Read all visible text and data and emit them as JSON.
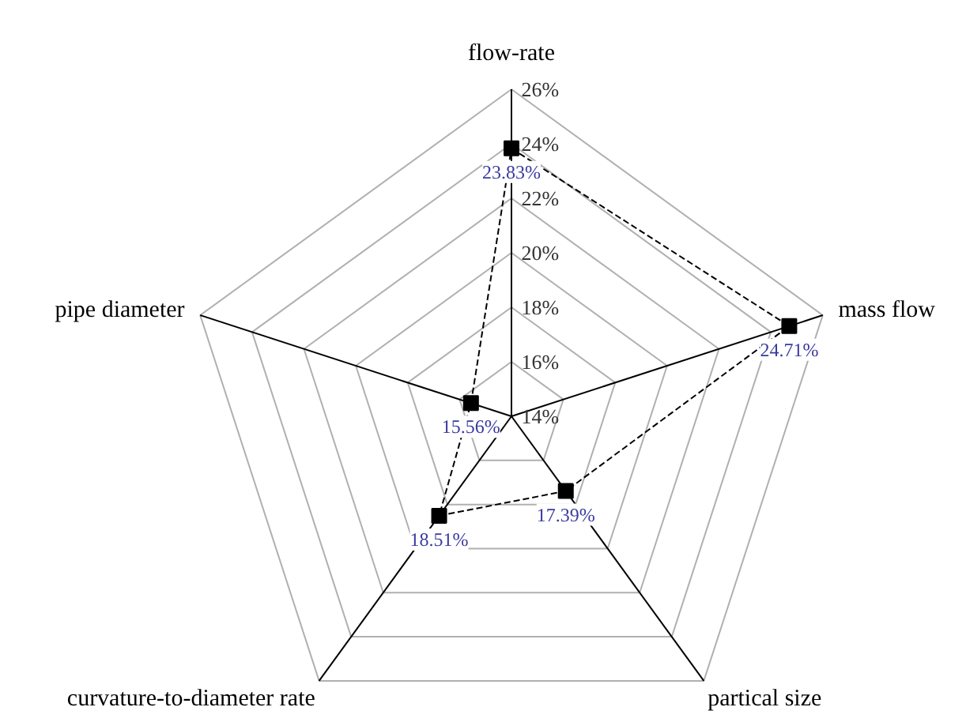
{
  "chart_data": {
    "type": "radar",
    "categories": [
      "flow-rate",
      "mass flow",
      "partical size",
      "curvature-to-diameter rate",
      "pipe diameter"
    ],
    "series": [
      {
        "color": "#000000",
        "values": [
          23.83,
          24.71,
          17.39,
          18.51,
          15.56
        ],
        "value_labels": [
          "23.83%",
          "24.71%",
          "17.39%",
          "18.51%",
          "15.56%"
        ]
      }
    ],
    "ylim": [
      14,
      26
    ],
    "yticks": [
      {
        "value": 14,
        "label": "14%"
      },
      {
        "value": 16,
        "label": "16%"
      },
      {
        "value": 18,
        "label": "18%"
      },
      {
        "value": 20,
        "label": "20%"
      },
      {
        "value": 22,
        "label": "22%"
      },
      {
        "value": 24,
        "label": "24%"
      },
      {
        "value": 26,
        "label": "26%"
      }
    ],
    "marker": "square",
    "line_style": "dashed",
    "grid": true
  }
}
